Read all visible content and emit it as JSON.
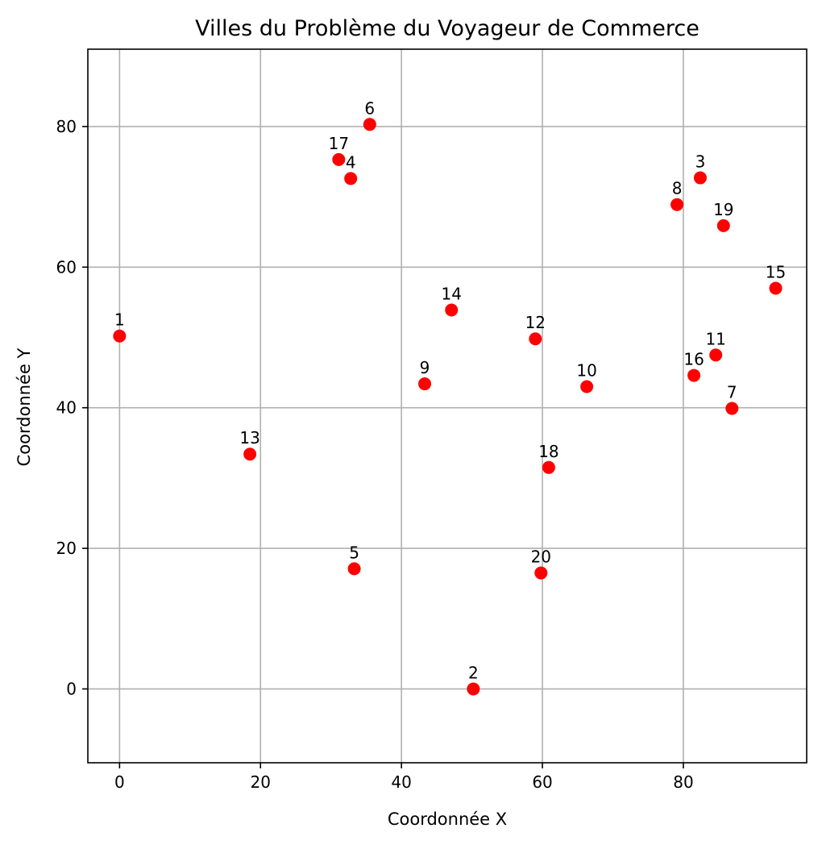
{
  "chart_data": {
    "type": "scatter",
    "title": "Villes du Problème du Voyageur de Commerce",
    "xlabel": "Coordonnée X",
    "ylabel": "Coordonnée Y",
    "xlim": [
      -4.5,
      97.5
    ],
    "ylim": [
      -10.5,
      91.0
    ],
    "xticks": [
      0,
      20,
      40,
      60,
      80
    ],
    "yticks": [
      0,
      20,
      40,
      60,
      80
    ],
    "grid": true,
    "marker_color": "#ff0000",
    "points": [
      {
        "label": "1",
        "x": 0.0,
        "y": 50.2
      },
      {
        "label": "2",
        "x": 50.2,
        "y": 0.0
      },
      {
        "label": "3",
        "x": 82.4,
        "y": 72.7
      },
      {
        "label": "4",
        "x": 32.8,
        "y": 72.6
      },
      {
        "label": "5",
        "x": 33.3,
        "y": 17.1
      },
      {
        "label": "6",
        "x": 35.5,
        "y": 80.3
      },
      {
        "label": "7",
        "x": 86.9,
        "y": 39.9
      },
      {
        "label": "8",
        "x": 79.1,
        "y": 68.9
      },
      {
        "label": "9",
        "x": 43.3,
        "y": 43.4
      },
      {
        "label": "10",
        "x": 66.3,
        "y": 43.0
      },
      {
        "label": "11",
        "x": 84.6,
        "y": 47.5
      },
      {
        "label": "12",
        "x": 59.0,
        "y": 49.8
      },
      {
        "label": "13",
        "x": 18.5,
        "y": 33.4
      },
      {
        "label": "14",
        "x": 47.1,
        "y": 53.9
      },
      {
        "label": "15",
        "x": 93.1,
        "y": 57.0
      },
      {
        "label": "16",
        "x": 81.5,
        "y": 44.6
      },
      {
        "label": "17",
        "x": 31.1,
        "y": 75.3
      },
      {
        "label": "18",
        "x": 60.9,
        "y": 31.5
      },
      {
        "label": "19",
        "x": 85.7,
        "y": 65.9
      },
      {
        "label": "20",
        "x": 59.8,
        "y": 16.5
      }
    ]
  }
}
